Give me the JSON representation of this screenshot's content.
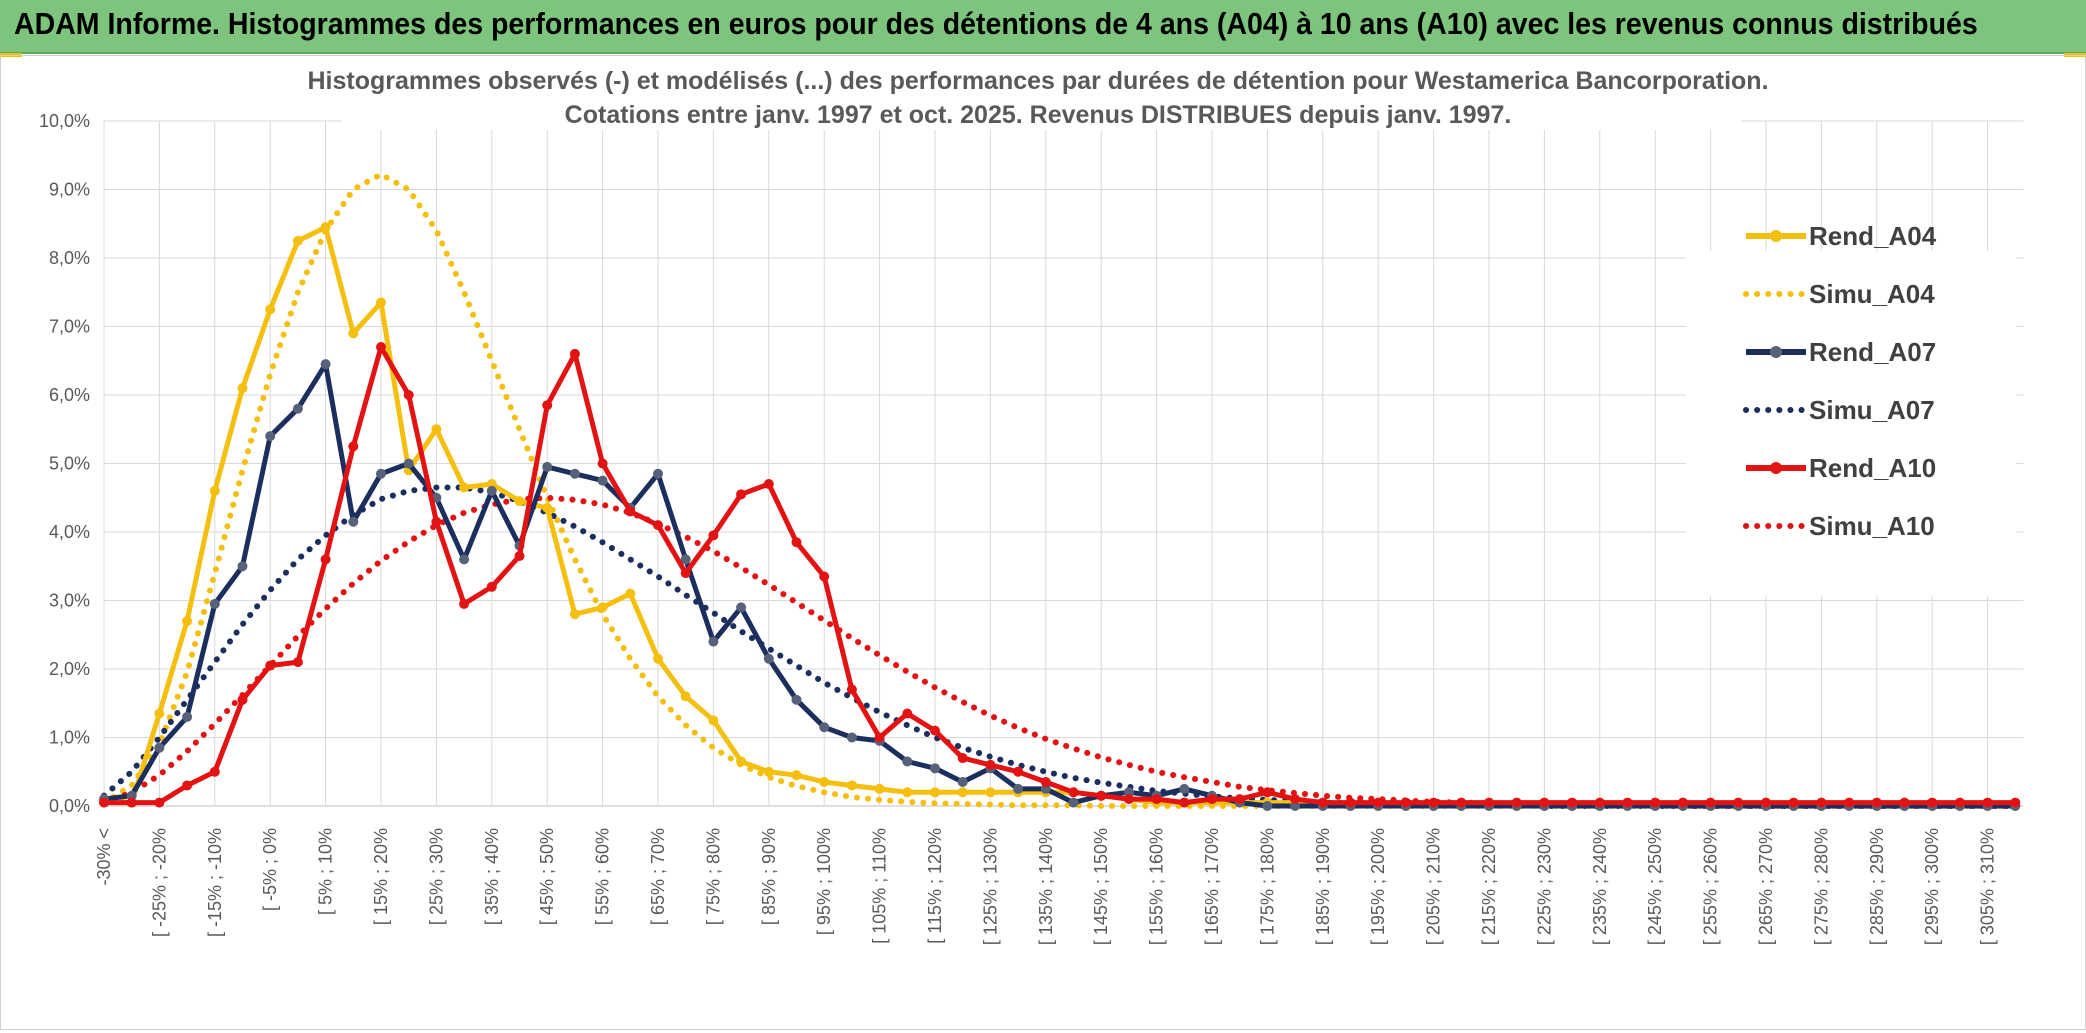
{
  "banner": {
    "title": "ADAM Informe. Histogrammes des performances en euros pour des détentions de 4 ans (A04) à 10 ans (A10) avec les revenus connus distribués",
    "background": "#7dc57d"
  },
  "chart_data": {
    "type": "line",
    "title_line1": "Histogrammes observés (-) et modélisés (...) des performances par durées de détention pour Westamerica Bancorporation.",
    "title_line2": "Cotations entre janv. 1997 et oct. 2025. Revenus DISTRIBUES depuis janv. 1997.",
    "ylim": [
      0,
      10
    ],
    "ytick_labels": [
      "0,0%",
      "1,0%",
      "2,0%",
      "3,0%",
      "4,0%",
      "5,0%",
      "6,0%",
      "7,0%",
      "8,0%",
      "9,0%",
      "10,0%"
    ],
    "xtick_labels": [
      "-30% <",
      "[ -25% ; -20%",
      "[ -15% ; -10%",
      "[ -5% ; 0%",
      "[ 5% ; 10%",
      "[ 15% ; 20%",
      "[ 25% ; 30%",
      "[ 35% ; 40%",
      "[ 45% ; 50%",
      "[ 55% ; 60%",
      "[ 65% ; 70%",
      "[ 75% ; 80%",
      "[ 85% ; 90%",
      "[ 95% ; 100%",
      "[ 105% ; 110%",
      "[ 115% ; 120%",
      "[ 125% ; 130%",
      "[ 135% ; 140%",
      "[ 145% ; 150%",
      "[ 155% ; 160%",
      "[ 165% ; 170%",
      "[ 175% ; 180%",
      "[ 185% ; 190%",
      "[ 195% ; 200%",
      "[ 205% ; 210%",
      "[ 215% ; 220%",
      "[ 225% ; 230%",
      "[ 235% ; 240%",
      "[ 245% ; 250%",
      "[ 255% ; 260%",
      "[ 265% ; 270%",
      "[ 275% ; 280%",
      "[ 285% ; 290%",
      "[ 295% ; 300%",
      "[ 305% ; 310%"
    ],
    "n_points": 70,
    "legend_position": "right",
    "series": [
      {
        "name": "Rend_A04",
        "style": "solid",
        "color": "#f5bf0f",
        "values": [
          0.1,
          0.05,
          1.35,
          2.7,
          4.6,
          6.1,
          7.25,
          8.25,
          8.45,
          6.9,
          7.35,
          4.9,
          5.5,
          4.65,
          4.7,
          4.45,
          4.35,
          2.8,
          2.9,
          3.1,
          2.15,
          1.6,
          1.25,
          0.65,
          0.5,
          0.45,
          0.35,
          0.3,
          0.25,
          0.2,
          0.2,
          0.2,
          0.2,
          0.2,
          0.2,
          0.2,
          0.15,
          0.1,
          0.05,
          0.05,
          0.05,
          0.05,
          0.05,
          0.05,
          0.03,
          0.0,
          0,
          0,
          0,
          0,
          0,
          0,
          0,
          0,
          0,
          0,
          0,
          0,
          0,
          0,
          0,
          0,
          0,
          0,
          0,
          0,
          0,
          0,
          0,
          0
        ]
      },
      {
        "name": "Simu_A04",
        "style": "dotted",
        "color": "#f5bf0f",
        "values": [
          0.05,
          0.3,
          0.9,
          1.95,
          3.4,
          4.9,
          6.3,
          7.5,
          8.4,
          9.0,
          9.22,
          9.0,
          8.4,
          7.5,
          6.5,
          5.5,
          4.5,
          3.6,
          2.8,
          2.15,
          1.6,
          1.18,
          0.85,
          0.6,
          0.42,
          0.29,
          0.2,
          0.13,
          0.09,
          0.06,
          0.04,
          0.03,
          0.02,
          0.01,
          0.01,
          0.01,
          0,
          0,
          0,
          0,
          0,
          0,
          0,
          0,
          0,
          0,
          0,
          0,
          0,
          0,
          0,
          0,
          0,
          0,
          0,
          0,
          0,
          0,
          0,
          0,
          0,
          0,
          0,
          0,
          0,
          0,
          0,
          0,
          0,
          0
        ]
      },
      {
        "name": "Rend_A07",
        "style": "solid",
        "color": "#1b2e5e",
        "values": [
          0.1,
          0.15,
          0.85,
          1.3,
          2.95,
          3.5,
          5.4,
          5.8,
          6.45,
          4.15,
          4.85,
          5.0,
          4.5,
          3.6,
          4.6,
          3.8,
          4.95,
          4.85,
          4.75,
          4.35,
          4.85,
          3.6,
          2.4,
          2.9,
          2.15,
          1.55,
          1.15,
          1.0,
          0.95,
          0.65,
          0.55,
          0.35,
          0.55,
          0.25,
          0.25,
          0.05,
          0.15,
          0.2,
          0.15,
          0.25,
          0.15,
          0.05,
          0.0,
          0,
          0,
          0,
          0,
          0,
          0,
          0,
          0,
          0,
          0,
          0,
          0,
          0,
          0,
          0,
          0,
          0,
          0,
          0,
          0,
          0,
          0,
          0,
          0,
          0,
          0,
          0
        ]
      },
      {
        "name": "Simu_A07",
        "style": "dotted",
        "color": "#1b2e5e",
        "values": [
          0.15,
          0.5,
          1.0,
          1.55,
          2.1,
          2.65,
          3.15,
          3.6,
          3.95,
          4.25,
          4.48,
          4.6,
          4.65,
          4.65,
          4.58,
          4.45,
          4.28,
          4.08,
          3.85,
          3.6,
          3.35,
          3.08,
          2.82,
          2.55,
          2.3,
          2.05,
          1.8,
          1.58,
          1.37,
          1.18,
          1.0,
          0.85,
          0.72,
          0.6,
          0.5,
          0.41,
          0.34,
          0.28,
          0.22,
          0.18,
          0.14,
          0.11,
          0.09,
          0.07,
          0.05,
          0.04,
          0.03,
          0.02,
          0.02,
          0.01,
          0.01,
          0.01,
          0,
          0,
          0,
          0,
          0,
          0,
          0,
          0,
          0,
          0,
          0,
          0,
          0,
          0,
          0,
          0,
          0,
          0
        ]
      },
      {
        "name": "Rend_A10",
        "style": "solid",
        "color": "#e31313",
        "values": [
          0.05,
          0.05,
          0.05,
          0.3,
          0.5,
          1.55,
          2.05,
          2.1,
          3.6,
          5.25,
          6.7,
          6.0,
          4.15,
          2.95,
          3.2,
          3.65,
          5.85,
          6.6,
          5.0,
          4.3,
          4.1,
          3.4,
          3.95,
          4.55,
          4.7,
          3.85,
          3.35,
          1.7,
          1.0,
          1.35,
          1.1,
          0.7,
          0.6,
          0.5,
          0.35,
          0.2,
          0.15,
          0.1,
          0.1,
          0.05,
          0.1,
          0.1,
          0.2,
          0.1,
          0.05,
          0.05,
          0.05,
          0.05,
          0.05,
          0.05,
          0.05,
          0.05,
          0.05,
          0.05,
          0.05,
          0.05,
          0.05,
          0.05,
          0.05,
          0.05,
          0.05,
          0.05,
          0.05,
          0.05,
          0.05,
          0.05,
          0.05,
          0.05,
          0.05,
          0.05
        ]
      },
      {
        "name": "Simu_A10",
        "style": "dotted",
        "color": "#e31313",
        "values": [
          0.05,
          0.2,
          0.45,
          0.8,
          1.2,
          1.62,
          2.05,
          2.48,
          2.88,
          3.25,
          3.58,
          3.86,
          4.1,
          4.28,
          4.4,
          4.48,
          4.5,
          4.47,
          4.4,
          4.28,
          4.12,
          3.93,
          3.72,
          3.48,
          3.23,
          2.97,
          2.71,
          2.45,
          2.2,
          1.96,
          1.73,
          1.52,
          1.32,
          1.14,
          0.98,
          0.84,
          0.71,
          0.6,
          0.5,
          0.42,
          0.35,
          0.28,
          0.23,
          0.19,
          0.15,
          0.12,
          0.1,
          0.08,
          0.06,
          0.05,
          0.04,
          0.03,
          0.02,
          0.02,
          0.01,
          0.01,
          0.01,
          0,
          0,
          0,
          0,
          0,
          0,
          0,
          0,
          0,
          0,
          0,
          0,
          0
        ]
      }
    ]
  }
}
